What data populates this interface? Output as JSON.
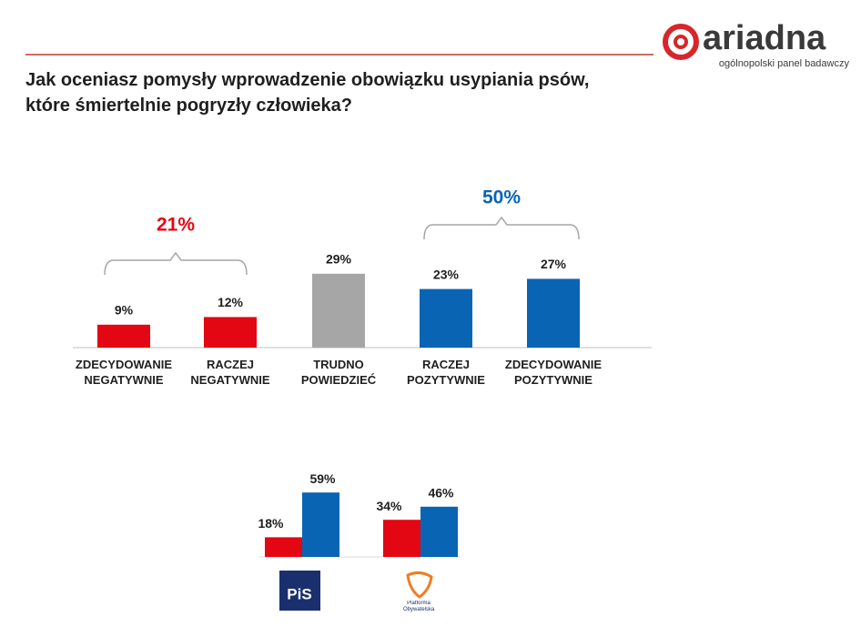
{
  "logo": {
    "name": "ariadna",
    "tagline": "ogólnopolski panel badawczy"
  },
  "chart_data": [
    {
      "type": "bar",
      "title": "Jak oceniasz pomysły wprowadzenie obowiązku usypiania psów,\nktóre śmiertelnie pogryzły człowieka?",
      "categories": [
        "ZDECYDOWANIE NEGATYWNIE",
        "RACZEJ NEGATYWNIE",
        "TRUDNO POWIEDZIEĆ",
        "RACZEJ POZYTYWNIE",
        "ZDECYDOWANIE POZYTYWNIE"
      ],
      "values": [
        9,
        12,
        29,
        23,
        27
      ],
      "value_labels": [
        "9%",
        "12%",
        "29%",
        "23%",
        "27%"
      ],
      "colors": [
        "#e30613",
        "#e30613",
        "#a6a6a6",
        "#0a64b4",
        "#0a64b4"
      ],
      "annotations": [
        {
          "text": "21%",
          "color": "#e30613"
        },
        {
          "text": "50%",
          "color": "#0a64b4"
        }
      ]
    },
    {
      "type": "grouped-bar",
      "categories": [
        "PiS",
        "Platforma Obywatelska"
      ],
      "series": [
        {
          "color": "#e30613",
          "values": [
            18,
            34
          ],
          "value_labels": [
            "18%",
            "34%"
          ]
        },
        {
          "color": "#0a64b4",
          "values": [
            59,
            46
          ],
          "value_labels": [
            "59%",
            "46%"
          ]
        }
      ]
    }
  ]
}
